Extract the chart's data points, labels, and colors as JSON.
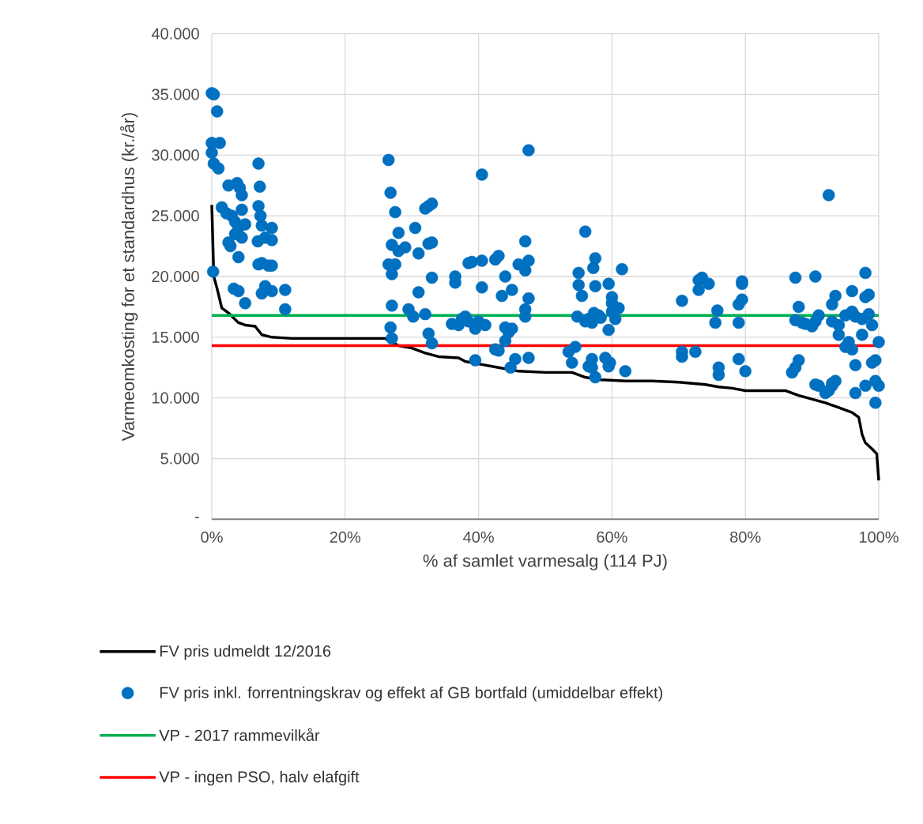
{
  "chart_data": {
    "type": "scatter",
    "xlabel": "% af samlet varmesalg (114 PJ)",
    "ylabel": "Varmeomkosting for et standardhus (kr./år)",
    "xlim": [
      0,
      100
    ],
    "ylim": [
      0,
      40000
    ],
    "xticks": [
      {
        "value": 0,
        "label": "0%"
      },
      {
        "value": 20,
        "label": "20%"
      },
      {
        "value": 40,
        "label": "40%"
      },
      {
        "value": 60,
        "label": "60%"
      },
      {
        "value": 80,
        "label": "80%"
      },
      {
        "value": 100,
        "label": "100%"
      }
    ],
    "yticks": [
      {
        "value": 0,
        "label": "-"
      },
      {
        "value": 5000,
        "label": "5.000"
      },
      {
        "value": 10000,
        "label": "10.000"
      },
      {
        "value": 15000,
        "label": "15.000"
      },
      {
        "value": 20000,
        "label": "20.000"
      },
      {
        "value": 25000,
        "label": "25.000"
      },
      {
        "value": 30000,
        "label": "30.000"
      },
      {
        "value": 35000,
        "label": "35.000"
      },
      {
        "value": 40000,
        "label": "40.000"
      }
    ],
    "grid": true,
    "legend": "bottom",
    "series": [
      {
        "name": "FV pris udmeldt 12/2016",
        "type": "line",
        "marker": "none",
        "color": "#000000",
        "x": [
          0,
          0.3,
          0.8,
          1.5,
          2.5,
          4,
          5,
          6.5,
          7.5,
          9,
          12,
          20,
          26,
          28,
          30,
          32,
          34,
          37,
          38,
          40,
          43,
          46,
          50,
          54,
          56,
          58,
          62,
          66,
          70,
          74,
          76,
          78,
          80,
          86,
          88,
          90,
          92,
          94,
          96,
          97,
          97.5,
          98,
          99,
          99.7,
          100
        ],
        "values": [
          25900,
          20000,
          19000,
          17400,
          17000,
          16200,
          16000,
          15900,
          15200,
          15000,
          14900,
          14900,
          14900,
          14300,
          14100,
          13700,
          13400,
          13300,
          13000,
          12800,
          12500,
          12200,
          12100,
          12100,
          11700,
          11500,
          11400,
          11400,
          11300,
          11100,
          10900,
          10800,
          10600,
          10600,
          10200,
          9900,
          9600,
          9200,
          8800,
          8400,
          7000,
          6300,
          5800,
          5400,
          3200
        ]
      },
      {
        "name": "FV pris inkl. forrentningskrav og effekt af GB bortfald (umiddelbar effekt)",
        "marker": "circle",
        "color": "#0070c0",
        "x": [
          0,
          0.3,
          0.8,
          0,
          1.2,
          0,
          0.3,
          1,
          2.5,
          1.5,
          2.2,
          3.8,
          4.2,
          4.5,
          3,
          3.5,
          4,
          4.5,
          5,
          3.5,
          4.5,
          2.5,
          2.8,
          4,
          0.2,
          3.3,
          4,
          5,
          7,
          7.2,
          7,
          7.3,
          7.5,
          8,
          9,
          9,
          7,
          7.5,
          8.5,
          9,
          8,
          7.5,
          9,
          11,
          11,
          6.9,
          26.5,
          26.8,
          27.5,
          27,
          28,
          26.5,
          27.5,
          27,
          27,
          28,
          29,
          30.5,
          32,
          32.5,
          33,
          31,
          32.5,
          33,
          26.8,
          27,
          29.5,
          30.2,
          31,
          33,
          32,
          32.5,
          33,
          36.5,
          36.5,
          37,
          37.5,
          38,
          38.5,
          39,
          39.5,
          39.5,
          40,
          40.5,
          40.5,
          41,
          40.5,
          42.5,
          43,
          42.5,
          43,
          43.5,
          44,
          44,
          44,
          44.5,
          45,
          44.8,
          45.5,
          45,
          46,
          47,
          47.5,
          47,
          47.5,
          47,
          47,
          47.5,
          47.5,
          38.5,
          36,
          53.5,
          54,
          54.5,
          54.8,
          55,
          55,
          55.5,
          56,
          56,
          56.5,
          56.5,
          57,
          57,
          57.5,
          57.2,
          57.5,
          57.5,
          57.3,
          57,
          58,
          58.3,
          59,
          59.5,
          59.7,
          59.5,
          59.5,
          60,
          60,
          60,
          61.5,
          61,
          62,
          60.5,
          70.5,
          70.5,
          70.5,
          72.5,
          73,
          73,
          73.5,
          74.5,
          75.5,
          75.8,
          76,
          76,
          79,
          79,
          79,
          79.5,
          79.5,
          79.5,
          80,
          87,
          87.5,
          88,
          87.5,
          88,
          87.5,
          88.5,
          89,
          90,
          90.5,
          91,
          90.5,
          90.5,
          91,
          92,
          92.5,
          93,
          93,
          93.5,
          92.5,
          93,
          93,
          93.5,
          94,
          94,
          95,
          95,
          95.5,
          96,
          96,
          96,
          96.5,
          96.5,
          96.5,
          97.5,
          97.5,
          98,
          98,
          98,
          98.5,
          98.5,
          99,
          99,
          99.5,
          100,
          99.5,
          100,
          99.5
        ],
        "values": [
          35100,
          35000,
          33600,
          31000,
          31000,
          30200,
          29300,
          28900,
          27500,
          25700,
          25200,
          27700,
          27300,
          26700,
          25000,
          24500,
          24000,
          25500,
          24300,
          23500,
          23200,
          22800,
          22500,
          21600,
          20400,
          19000,
          18800,
          17800,
          29300,
          27400,
          25800,
          25000,
          24200,
          23200,
          24000,
          23000,
          21000,
          21100,
          20900,
          20900,
          19200,
          18600,
          18800,
          18900,
          17300,
          22900,
          29600,
          26900,
          25300,
          22600,
          23600,
          21000,
          21000,
          20200,
          17600,
          22100,
          22400,
          24000,
          25600,
          25800,
          26000,
          21900,
          22700,
          22800,
          15800,
          14900,
          17300,
          16700,
          18700,
          19900,
          16900,
          15300,
          14500,
          20000,
          19500,
          16000,
          16500,
          16700,
          21100,
          21200,
          15700,
          13100,
          16300,
          21300,
          19100,
          16000,
          28400,
          21400,
          21700,
          14000,
          13900,
          18400,
          20000,
          15800,
          14700,
          15400,
          15700,
          12500,
          13200,
          18900,
          21000,
          20500,
          21300,
          22900,
          18200,
          16700,
          17300,
          13300,
          30400,
          16300,
          16100,
          13800,
          12900,
          14200,
          16700,
          19300,
          20300,
          18400,
          23700,
          16300,
          16500,
          12600,
          13200,
          12500,
          11700,
          20700,
          21500,
          19200,
          17000,
          16200,
          16800,
          16600,
          13300,
          12600,
          12900,
          19400,
          15600,
          17800,
          17100,
          18300,
          20600,
          17400,
          12200,
          16500,
          18000,
          13800,
          13400,
          13800,
          19700,
          18900,
          19900,
          19400,
          16200,
          17200,
          12500,
          11900,
          17700,
          16200,
          13200,
          19600,
          19400,
          18100,
          12200,
          12100,
          12500,
          13100,
          16400,
          17500,
          19900,
          16200,
          16100,
          15900,
          16300,
          16800,
          20000,
          11100,
          11000,
          10400,
          10600,
          11000,
          11200,
          11400,
          26700,
          17700,
          16300,
          18400,
          16000,
          15200,
          16800,
          14200,
          14600,
          14000,
          17100,
          18800,
          16700,
          10400,
          12700,
          15200,
          16500,
          20300,
          18300,
          11000,
          16900,
          18500,
          16000,
          12900,
          13100,
          14600,
          11400,
          11000,
          9600
        ]
      },
      {
        "name": "VP - 2017 rammevilkår",
        "type": "line",
        "marker": "none",
        "color": "#00b050",
        "x": [
          0,
          100
        ],
        "values": [
          16800,
          16800
        ]
      },
      {
        "name": "VP - ingen PSO, halv elafgift",
        "type": "line",
        "marker": "none",
        "color": "#ff0000",
        "x": [
          0,
          100
        ],
        "values": [
          14300,
          14300
        ]
      }
    ]
  }
}
